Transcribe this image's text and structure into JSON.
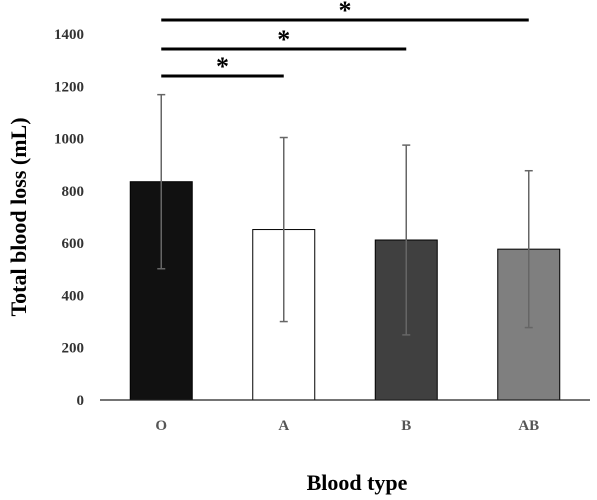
{
  "chart_data": {
    "type": "bar",
    "categories": [
      "O",
      "A",
      "B",
      "AB"
    ],
    "values": [
      835,
      652,
      612,
      577
    ],
    "error": [
      333,
      352,
      363,
      300
    ],
    "bar_colors": [
      "#111111",
      "#ffffff",
      "#404040",
      "#7f7f7f"
    ],
    "bar_edge_color": "#000000",
    "error_color": "#666666",
    "xlabel": "Blood type",
    "ylabel": "Total blood loss (mL)",
    "ylim": [
      0,
      1400
    ],
    "yticks": [
      0,
      200,
      400,
      600,
      800,
      1000,
      1200,
      1400
    ],
    "grid": false,
    "significance": [
      {
        "from": "O",
        "to": "A",
        "label": "*"
      },
      {
        "from": "O",
        "to": "B",
        "label": "*"
      },
      {
        "from": "O",
        "to": "AB",
        "label": "*"
      }
    ]
  }
}
